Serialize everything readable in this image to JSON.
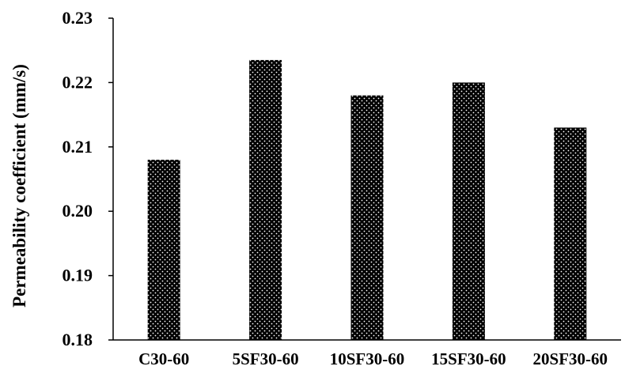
{
  "chart_data": {
    "type": "bar",
    "title": "",
    "xlabel": "",
    "ylabel": "Permeability coefficient (mm/s)",
    "categories": [
      "C30-60",
      "5SF30-60",
      "10SF30-60",
      "15SF30-60",
      "20SF30-60"
    ],
    "values": [
      0.208,
      0.2235,
      0.218,
      0.22,
      0.213
    ],
    "ylim": [
      0.18,
      0.23
    ],
    "yticks": [
      0.18,
      0.19,
      0.2,
      0.21,
      0.22,
      0.23
    ],
    "ytick_labels": [
      "0.18",
      "0.19",
      "0.20",
      "0.21",
      "0.22",
      "0.23"
    ],
    "grid": false,
    "legend": "none",
    "bar_fill": "black with white dot pattern",
    "colors": {
      "bar": "#000000",
      "dots": "#ffffff",
      "axis": "#000000"
    }
  }
}
